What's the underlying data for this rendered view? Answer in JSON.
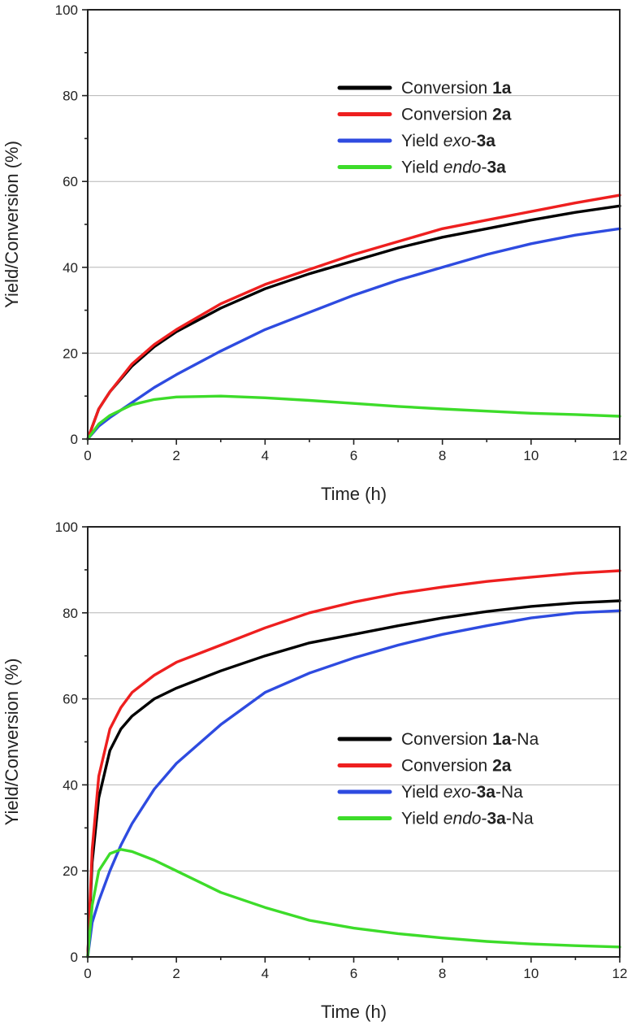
{
  "chart_data": [
    {
      "type": "line",
      "xlabel": "Time (h)",
      "ylabel": "Yield/Conversion (%)",
      "xlim": [
        0,
        12
      ],
      "ylim": [
        0,
        100
      ],
      "xticks": [
        0,
        2,
        4,
        6,
        8,
        10,
        12
      ],
      "yticks": [
        0,
        20,
        40,
        60,
        80,
        100
      ],
      "grid": "horizontal",
      "legend_position": "top-right",
      "x": [
        0,
        0.25,
        0.5,
        1,
        1.5,
        2,
        3,
        4,
        5,
        6,
        7,
        8,
        9,
        10,
        11,
        12
      ],
      "series": [
        {
          "name_parts": [
            {
              "t": "Conversion ",
              "s": "n"
            },
            {
              "t": "1a",
              "s": "b"
            }
          ],
          "color": "#000000",
          "values": [
            0,
            7,
            11,
            17,
            21.5,
            25,
            30.5,
            35,
            38.5,
            41.5,
            44.5,
            47,
            49,
            51,
            52.8,
            54.3
          ]
        },
        {
          "name_parts": [
            {
              "t": "Conversion ",
              "s": "n"
            },
            {
              "t": "2a",
              "s": "b"
            }
          ],
          "color": "#ee1f1f",
          "values": [
            0,
            7,
            11,
            17.5,
            22,
            25.5,
            31.5,
            36,
            39.5,
            43,
            46,
            49,
            51,
            53,
            55,
            56.8
          ]
        },
        {
          "name_parts": [
            {
              "t": "Yield ",
              "s": "n"
            },
            {
              "t": "exo",
              "s": "i"
            },
            {
              "t": "-",
              "s": "n"
            },
            {
              "t": "3a",
              "s": "b"
            }
          ],
          "color": "#2e4be0",
          "values": [
            0,
            3,
            5,
            8.5,
            12,
            15,
            20.5,
            25.5,
            29.5,
            33.5,
            37,
            40,
            43,
            45.5,
            47.5,
            49
          ]
        },
        {
          "name_parts": [
            {
              "t": "Yield ",
              "s": "n"
            },
            {
              "t": "endo",
              "s": "i"
            },
            {
              "t": "-",
              "s": "n"
            },
            {
              "t": "3a",
              "s": "b"
            }
          ],
          "color": "#3ddc2a",
          "values": [
            0,
            3.5,
            5.5,
            8,
            9.2,
            9.8,
            10,
            9.6,
            9,
            8.3,
            7.6,
            7,
            6.5,
            6,
            5.7,
            5.3
          ]
        }
      ]
    },
    {
      "type": "line",
      "xlabel": "Time (h)",
      "ylabel": "Yield/Conversion (%)",
      "xlim": [
        0,
        12
      ],
      "ylim": [
        0,
        100
      ],
      "xticks": [
        0,
        2,
        4,
        6,
        8,
        10,
        12
      ],
      "yticks": [
        0,
        20,
        40,
        60,
        80,
        100
      ],
      "grid": "horizontal",
      "legend_position": "center-right",
      "x": [
        0,
        0.1,
        0.25,
        0.5,
        0.75,
        1,
        1.5,
        2,
        3,
        4,
        5,
        6,
        7,
        8,
        9,
        10,
        11,
        12
      ],
      "series": [
        {
          "name_parts": [
            {
              "t": "Conversion ",
              "s": "n"
            },
            {
              "t": "1a",
              "s": "b"
            },
            {
              "t": "-Na",
              "s": "n"
            }
          ],
          "color": "#000000",
          "values": [
            0,
            22,
            37,
            48,
            53,
            56,
            60,
            62.5,
            66.5,
            70,
            73,
            75,
            77,
            78.8,
            80.3,
            81.5,
            82.3,
            82.8
          ]
        },
        {
          "name_parts": [
            {
              "t": "Conversion ",
              "s": "n"
            },
            {
              "t": "2a",
              "s": "b"
            }
          ],
          "color": "#ee1f1f",
          "values": [
            0,
            25,
            42,
            53,
            58,
            61.5,
            65.5,
            68.5,
            72.5,
            76.5,
            80,
            82.5,
            84.5,
            86,
            87.3,
            88.3,
            89.2,
            89.8
          ]
        },
        {
          "name_parts": [
            {
              "t": "Yield ",
              "s": "n"
            },
            {
              "t": "exo",
              "s": "i"
            },
            {
              "t": "-",
              "s": "n"
            },
            {
              "t": "3a",
              "s": "b"
            },
            {
              "t": "-Na",
              "s": "n"
            }
          ],
          "color": "#2e4be0",
          "values": [
            0,
            8,
            13,
            20,
            26,
            31,
            39,
            45,
            54,
            61.5,
            66,
            69.5,
            72.5,
            75,
            77,
            78.8,
            80,
            80.5
          ]
        },
        {
          "name_parts": [
            {
              "t": "Yield ",
              "s": "n"
            },
            {
              "t": "endo",
              "s": "i"
            },
            {
              "t": "-",
              "s": "n"
            },
            {
              "t": "3a",
              "s": "b"
            },
            {
              "t": "-Na",
              "s": "n"
            }
          ],
          "color": "#3ddc2a",
          "values": [
            0,
            12,
            20,
            24,
            25,
            24.5,
            22.5,
            20,
            15,
            11.5,
            8.5,
            6.7,
            5.4,
            4.4,
            3.6,
            3,
            2.6,
            2.3
          ]
        }
      ]
    }
  ]
}
